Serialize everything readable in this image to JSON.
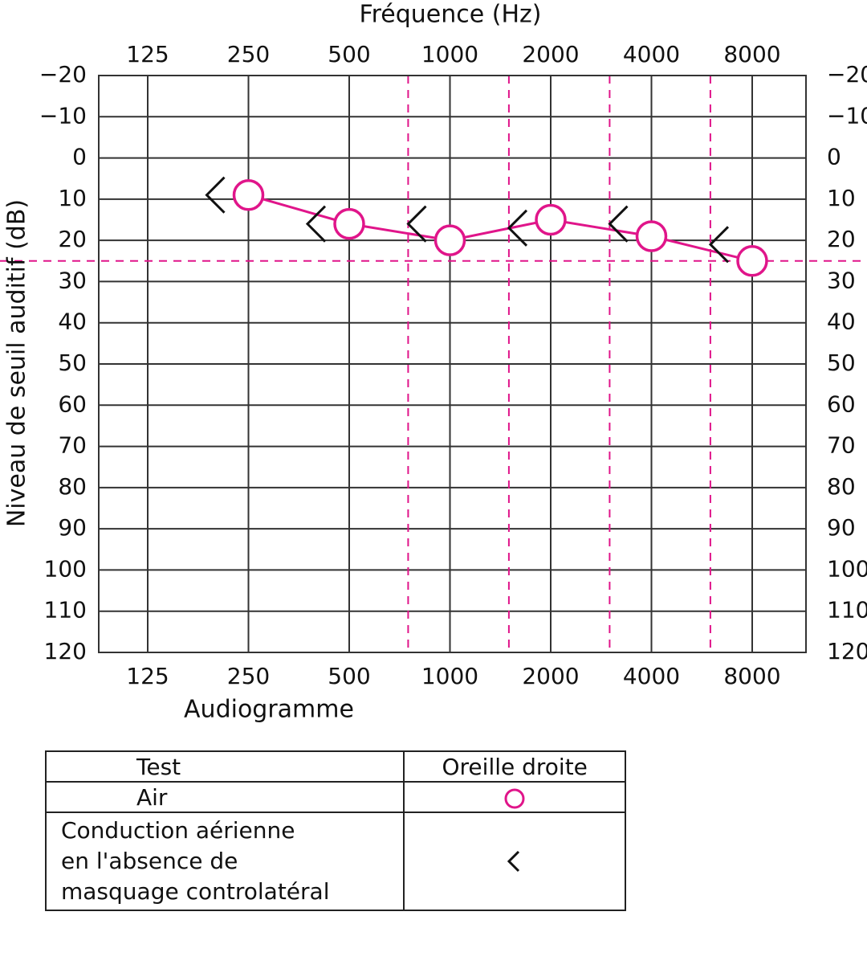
{
  "chart_data": {
    "type": "line",
    "title": "",
    "top_axis_label": "Fréquence (Hz)",
    "xlabel": "Audiogramme",
    "ylabel": "Niveau de seuil auditif (dB)",
    "x_ticks": [
      "125",
      "250",
      "500",
      "1000",
      "2000",
      "4000",
      "8000"
    ],
    "y_ticks": [
      "−20",
      "−10",
      "0",
      "10",
      "20",
      "30",
      "40",
      "50",
      "60",
      "70",
      "80",
      "90",
      "100",
      "110",
      "120"
    ],
    "ylim": [
      -20,
      120
    ],
    "y_inverted": true,
    "grid": true,
    "reference_line_db": 25,
    "half_octave_lines_hz": [
      750,
      1500,
      3000,
      6000
    ],
    "series": [
      {
        "symbol": "circle",
        "color": "#e0158a",
        "connected": true,
        "points": [
          {
            "x": "250",
            "y": 9
          },
          {
            "x": "500",
            "y": 16
          },
          {
            "x": "1000",
            "y": 20
          },
          {
            "x": "2000",
            "y": 15
          },
          {
            "x": "4000",
            "y": 19
          },
          {
            "x": "8000",
            "y": 25
          }
        ]
      },
      {
        "symbol": "chevron-left",
        "color": "#111111",
        "connected": false,
        "points": [
          {
            "x": "250",
            "y": 9
          },
          {
            "x": "500",
            "y": 16
          },
          {
            "x": "1000",
            "y": 16
          },
          {
            "x": "2000",
            "y": 17
          },
          {
            "x": "4000",
            "y": 16
          },
          {
            "x": "8000",
            "y": 21
          }
        ]
      }
    ]
  },
  "legend": {
    "header_test": "Test",
    "header_ear": "Oreille droite",
    "air_label": "Air",
    "conduction_lines": [
      "Conduction aérienne",
      "en l'absence de",
      "masquage controlatéral"
    ],
    "air_symbol_icon": "circle-icon",
    "conduction_symbol_icon": "chevron-left-icon"
  },
  "colors": {
    "accent": "#e0158a",
    "grid": "#333333",
    "ink": "#111111"
  }
}
